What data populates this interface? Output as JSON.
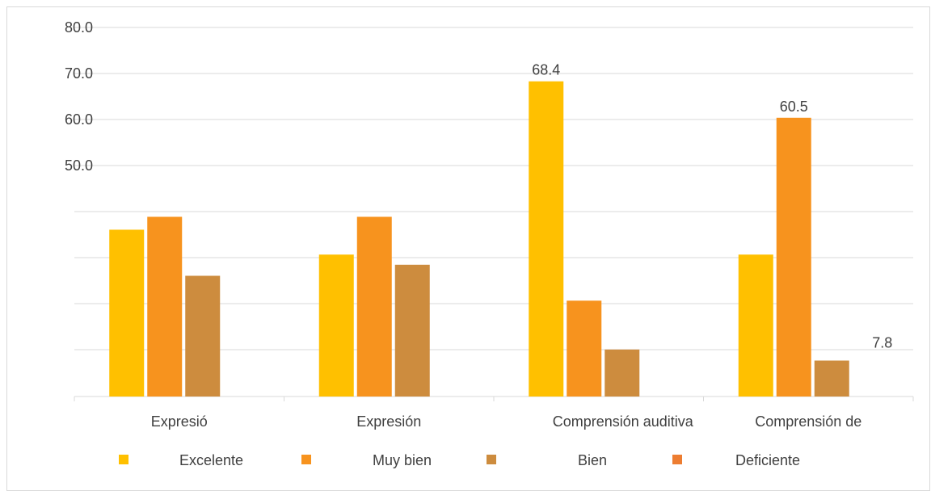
{
  "chart_data": {
    "type": "bar",
    "title": "",
    "xlabel": "",
    "ylabel": "",
    "ylim": [
      0,
      85
    ],
    "y_tick_labels": [
      "50.0",
      "60.0",
      "70.0",
      "80.0"
    ],
    "grid": true,
    "legend_position": "bottom",
    "categories": [
      "Expresió",
      "Expresión",
      "Comprensión auditiva",
      "Comprensión de"
    ],
    "series": [
      {
        "name": "Excelente",
        "color": "#FFC000",
        "values": [
          36.2,
          30.8,
          68.4,
          30.8
        ]
      },
      {
        "name": "Muy bien",
        "color": "#F7931E",
        "values": [
          39.0,
          39.0,
          20.8,
          60.5
        ]
      },
      {
        "name": "Bien",
        "color": "#CD8C3E",
        "values": [
          26.2,
          28.6,
          10.2,
          7.8
        ]
      },
      {
        "name": "Deficiente",
        "color": "#ED7D31",
        "values": [
          0,
          0,
          0,
          0
        ]
      }
    ],
    "data_labels": [
      {
        "series": 0,
        "category": 2,
        "text": "68.4"
      },
      {
        "series": 1,
        "category": 3,
        "text": "60.5"
      },
      {
        "series": 2,
        "category": 3,
        "text": "7.8"
      }
    ]
  }
}
